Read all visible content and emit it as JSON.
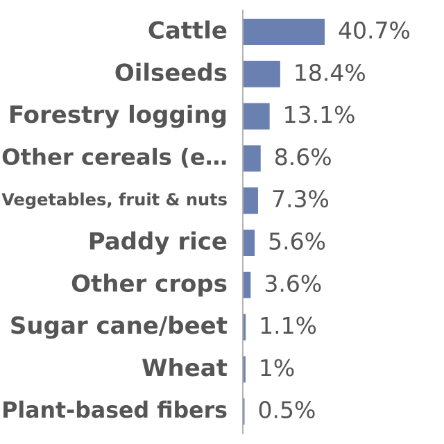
{
  "chart_data": {
    "type": "bar",
    "orientation": "horizontal",
    "categories": [
      "Cattle",
      "Oilseeds",
      "Forestry logging",
      "Other cereals (e…",
      "Vegetables, fruit & nuts",
      "Paddy rice",
      "Other crops",
      "Sugar cane/beet",
      "Wheat",
      "Plant-based fibers"
    ],
    "values": [
      40.7,
      18.4,
      13.1,
      8.6,
      7.3,
      5.6,
      3.6,
      1.1,
      1,
      0.5
    ],
    "value_labels": [
      "40.7%",
      "18.4%",
      "13.1%",
      "8.6%",
      "7.3%",
      "5.6%",
      "3.6%",
      "1.1%",
      "1%",
      "0.5%"
    ],
    "color": "#6a80b0"
  }
}
